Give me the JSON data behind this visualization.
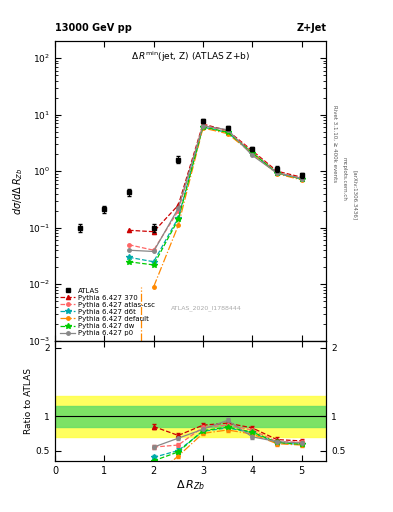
{
  "atlas_x": [
    0.5,
    1.0,
    1.5,
    2.0,
    2.5,
    3.0,
    3.5,
    4.0,
    4.5,
    5.0
  ],
  "atlas_y": [
    0.1,
    0.21,
    0.42,
    0.1,
    1.6,
    7.8,
    5.8,
    2.5,
    1.1,
    0.85
  ],
  "atlas_yerr_lo": [
    0.015,
    0.03,
    0.06,
    0.015,
    0.22,
    0.7,
    0.5,
    0.22,
    0.12,
    0.09
  ],
  "atlas_yerr_hi": [
    0.015,
    0.03,
    0.06,
    0.015,
    0.22,
    0.7,
    0.5,
    0.22,
    0.12,
    0.09
  ],
  "mc_x": [
    1.5,
    2.0,
    2.5,
    3.0,
    3.5,
    4.0,
    4.5,
    5.0
  ],
  "py370_y": [
    0.09,
    0.085,
    0.25,
    6.8,
    5.2,
    2.3,
    1.0,
    0.78
  ],
  "py370_color": "#cc0000",
  "py370_ls": "--",
  "py370_marker": "^",
  "py370_label": "Pythia 6.427 370",
  "pyatlas_y": [
    0.05,
    0.04,
    0.2,
    6.5,
    5.0,
    2.2,
    0.95,
    0.75
  ],
  "pyatlas_color": "#ff6666",
  "pyatlas_ls": "--",
  "pyatlas_marker": "o",
  "pyatlas_label": "Pythia 6.427 atlas-csc",
  "pyd6t_y": [
    0.03,
    0.025,
    0.15,
    6.0,
    4.8,
    2.1,
    0.92,
    0.72
  ],
  "pyd6t_color": "#00aaaa",
  "pyd6t_ls": "--",
  "pyd6t_marker": "*",
  "pyd6t_label": "Pythia 6.427 d6t",
  "pydef_vline_x": 1.75,
  "pydef_y": [
    null,
    0.009,
    0.11,
    5.8,
    4.6,
    2.05,
    0.9,
    0.7
  ],
  "pydef_color": "#ff8800",
  "pydef_ls": "-.",
  "pydef_marker": "o",
  "pydef_label": "Pythia 6.427 default",
  "pydw_y": [
    0.025,
    0.022,
    0.14,
    6.1,
    4.85,
    2.12,
    0.93,
    0.73
  ],
  "pydw_color": "#00cc00",
  "pydw_ls": "--",
  "pydw_marker": "*",
  "pydw_label": "Pythia 6.427 dw",
  "pyp0_y": [
    0.04,
    0.038,
    0.22,
    6.3,
    5.4,
    1.9,
    0.93,
    0.74
  ],
  "pyp0_color": "#888888",
  "pyp0_ls": "-",
  "pyp0_marker": "o",
  "pyp0_label": "Pythia 6.427 p0",
  "ratio_x": [
    2.0,
    2.5,
    3.0,
    3.5,
    4.0,
    4.5,
    5.0
  ],
  "ratio_py370": [
    0.85,
    0.72,
    0.87,
    0.9,
    0.83,
    0.66,
    0.64
  ],
  "ratio_pyatlas": [
    0.55,
    0.58,
    0.84,
    0.87,
    0.8,
    0.63,
    0.62
  ],
  "ratio_pyd6t": [
    0.4,
    0.5,
    0.78,
    0.83,
    0.76,
    0.61,
    0.59
  ],
  "ratio_pydef": [
    0.12,
    0.42,
    0.75,
    0.8,
    0.74,
    0.6,
    0.58
  ],
  "ratio_pydw": [
    0.35,
    0.48,
    0.79,
    0.84,
    0.77,
    0.62,
    0.59
  ],
  "ratio_pyp0": [
    0.55,
    0.68,
    0.81,
    0.94,
    0.7,
    0.63,
    0.61
  ],
  "ratio_py370_err": [
    0.03,
    0.03,
    0.03,
    0.03,
    0.03,
    0.03,
    0.03
  ],
  "ratio_pyatlas_err": [
    0.03,
    0.03,
    0.03,
    0.03,
    0.03,
    0.03,
    0.03
  ],
  "ratio_pyd6t_err": [
    0.03,
    0.03,
    0.03,
    0.03,
    0.03,
    0.03,
    0.03
  ],
  "ratio_pydef_err": [
    0.03,
    0.03,
    0.03,
    0.03,
    0.03,
    0.03,
    0.03
  ],
  "ratio_pydw_err": [
    0.03,
    0.03,
    0.03,
    0.03,
    0.03,
    0.03,
    0.03
  ],
  "ratio_pyp0_err": [
    0.03,
    0.03,
    0.03,
    0.03,
    0.03,
    0.03,
    0.03
  ],
  "xlim": [
    0,
    5.5
  ],
  "ylim_main": [
    0.001,
    200
  ],
  "ylim_ratio": [
    0.35,
    2.1
  ],
  "title_left": "13000 GeV pp",
  "title_right": "Z+Jet",
  "inner_title": "Δ Rⁿᴵⁿ(jet, Z) (ATLAS Z+b)",
  "ylabel_main": "dσ/dΔ R_{Zb}",
  "ylabel_ratio": "Ratio to ATLAS",
  "xlabel": "Δ R_{Zb}",
  "watermark": "ATLAS_2020_I1788444"
}
